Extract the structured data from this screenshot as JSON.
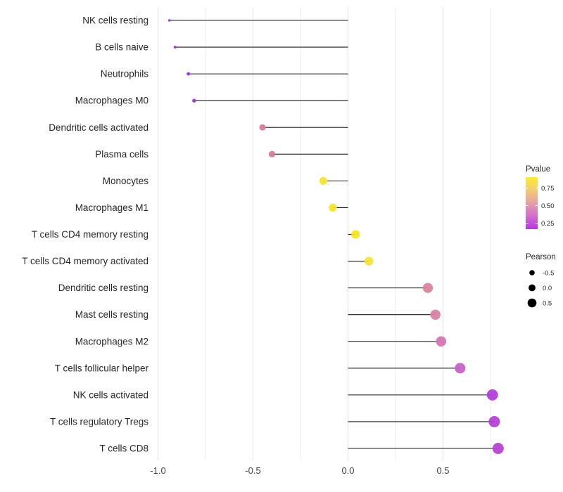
{
  "chart_data": {
    "type": "lollipop",
    "title": "",
    "xlabel": "",
    "ylabel": "",
    "x_ticks": [
      -1.0,
      -0.5,
      0.0,
      0.5
    ],
    "x_tick_labels": [
      "-1.0",
      "-0.5",
      "0.0",
      "0.5"
    ],
    "xlim": [
      -1.01,
      1.11
    ],
    "grid_step": 0.25,
    "grid_on": true,
    "baseline_x": 0.0,
    "points": [
      {
        "label": "NK cells resting",
        "pearson": -0.94,
        "color": "#9b2ee0"
      },
      {
        "label": "B cells naive",
        "pearson": -0.91,
        "color": "#9c2fe0"
      },
      {
        "label": "Neutrophils",
        "pearson": -0.84,
        "color": "#9d31e0"
      },
      {
        "label": "Macrophages M0",
        "pearson": -0.81,
        "color": "#9e34dd"
      },
      {
        "label": "Dendritic cells activated",
        "pearson": -0.45,
        "color": "#d77b90"
      },
      {
        "label": "Plasma cells",
        "pearson": -0.4,
        "color": "#d77d92"
      },
      {
        "label": "Monocytes",
        "pearson": -0.13,
        "color": "#f3e335"
      },
      {
        "label": "Macrophages M1",
        "pearson": -0.08,
        "color": "#f4e32d"
      },
      {
        "label": "T cells CD4 memory resting",
        "pearson": 0.04,
        "color": "#f6e41f"
      },
      {
        "label": "T cells CD4 memory activated",
        "pearson": 0.11,
        "color": "#f3e236"
      },
      {
        "label": "Dendritic cells resting",
        "pearson": 0.42,
        "color": "#d8839b"
      },
      {
        "label": "Mast cells resting",
        "pearson": 0.46,
        "color": "#d780a5"
      },
      {
        "label": "Macrophages M2",
        "pearson": 0.49,
        "color": "#d574b1"
      },
      {
        "label": "T cells follicular helper",
        "pearson": 0.59,
        "color": "#c760c8"
      },
      {
        "label": "NK cells activated",
        "pearson": 0.76,
        "color": "#b03cd7"
      },
      {
        "label": "T cells regulatory  Tregs",
        "pearson": 0.77,
        "color": "#b13ed4"
      },
      {
        "label": "T cells CD8",
        "pearson": 0.79,
        "color": "#b441d1"
      }
    ],
    "legend_pvalue": {
      "title": "Pvalue",
      "tick_labels": [
        "0.75",
        "0.50",
        "0.25"
      ],
      "gradient_stops": [
        "#f9ee34",
        "#f4ca74",
        "#e5a0a4",
        "#d26dcb",
        "#b335e6"
      ]
    },
    "legend_pearson": {
      "title": "Pearson",
      "entries": [
        {
          "label": "-0.5"
        },
        {
          "label": "0.0"
        },
        {
          "label": "0.5"
        }
      ]
    },
    "style_colors": {
      "stem": "#1a1a1a",
      "grid_major": "#e2e2e2",
      "grid_minor": "#ebebeb",
      "axis_text": "#404040",
      "row_text": "#262626",
      "legend_text": "#262626",
      "legend_dot": "#000000"
    }
  }
}
